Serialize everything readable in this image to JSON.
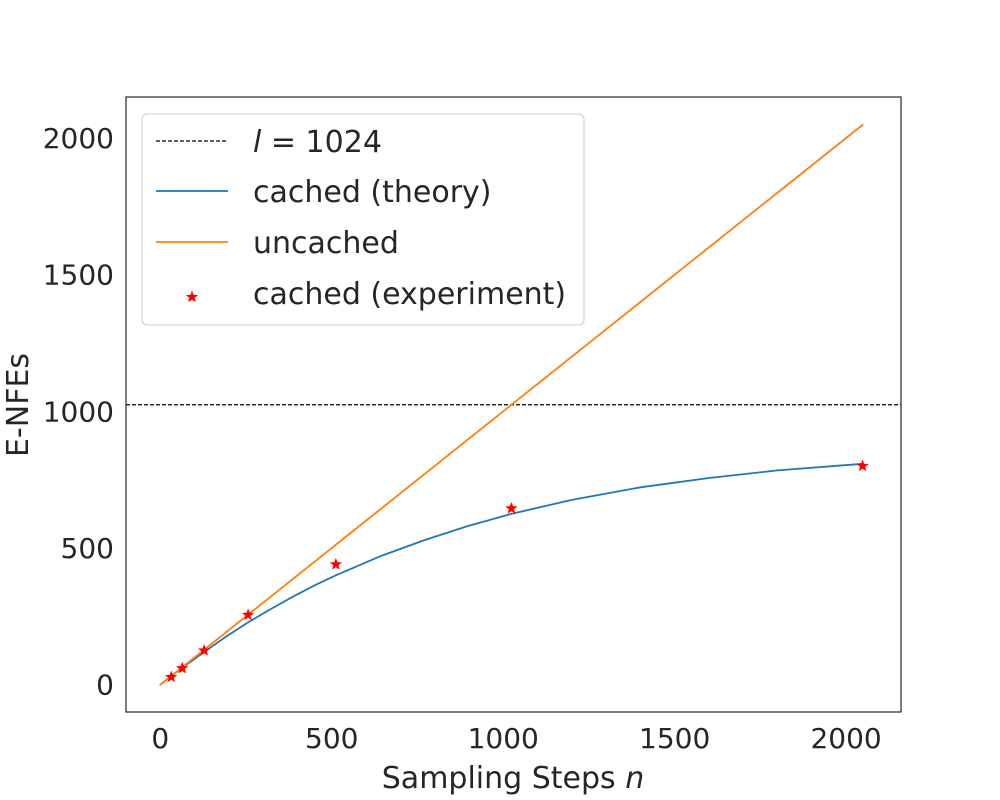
{
  "chart_data": {
    "type": "line",
    "xlabel_text": "Sampling Steps ",
    "xlabel_var": "n",
    "ylabel": "E-NFEs",
    "xlim": [
      -100,
      2160
    ],
    "ylim": [
      -100,
      2150
    ],
    "xticks": [
      0,
      500,
      1000,
      1500,
      2000
    ],
    "yticks": [
      0,
      500,
      1000,
      1500,
      2000
    ],
    "grid": false,
    "legend_position": "top-left",
    "legend": {
      "reference": {
        "var": "l",
        "text": " = 1024"
      },
      "theory": "cached (theory)",
      "uncached": "uncached",
      "experiment": "cached (experiment)"
    },
    "reference_line": {
      "y": 1024,
      "color": "#000000"
    },
    "series": [
      {
        "name": "uncached",
        "color": "#ff7f0e",
        "x": [
          0,
          2048
        ],
        "y": [
          0,
          2048
        ]
      },
      {
        "name": "cached (theory)",
        "color": "#1f77b4",
        "x": [
          0,
          8,
          16,
          32,
          64,
          128,
          192,
          256,
          320,
          384,
          448,
          512,
          640,
          768,
          896,
          1024,
          1200,
          1400,
          1600,
          1800,
          2048
        ],
        "y": [
          0,
          8,
          16,
          31.5,
          62,
          120,
          176,
          228,
          275,
          320,
          362,
          400,
          469,
          528,
          580,
          625,
          676,
          722,
          756,
          784,
          808
        ]
      },
      {
        "name": "cached (experiment)",
        "color": "#ff0000",
        "x": [
          32,
          64,
          128,
          256,
          512,
          1024,
          2048
        ],
        "y": [
          28,
          60,
          125,
          255,
          440,
          645,
          800
        ]
      }
    ]
  }
}
